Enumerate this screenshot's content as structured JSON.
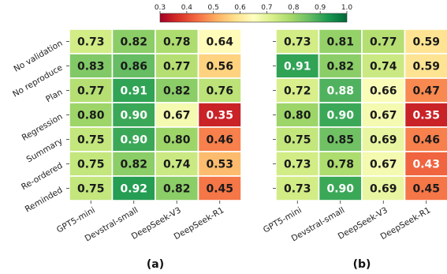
{
  "colors": {
    "scale": [
      "#a50026",
      "#d73027",
      "#f46d43",
      "#fdae61",
      "#fee08b",
      "#ffffbf",
      "#d9ef8b",
      "#a6d96a",
      "#66bd63",
      "#1a9850",
      "#006837"
    ],
    "cell_border": "#ffffff",
    "dark_text": "#1a1a1a",
    "light_text": "#ffffff"
  },
  "chart_data": [
    {
      "type": "heatmap",
      "panel_label": "(a)",
      "rows": [
        "No validation",
        "No reproduce",
        "Plan",
        "Regression",
        "Summary",
        "Re-ordered",
        "Reminded"
      ],
      "columns": [
        "GPT5-mini",
        "Devstral-small",
        "DeepSeek-V3",
        "DeepSeek-R1"
      ],
      "values": [
        [
          0.73,
          0.82,
          0.78,
          0.64
        ],
        [
          0.83,
          0.86,
          0.77,
          0.56
        ],
        [
          0.77,
          0.91,
          0.82,
          0.76
        ],
        [
          0.8,
          0.9,
          0.67,
          0.35
        ],
        [
          0.75,
          0.9,
          0.8,
          0.46
        ],
        [
          0.75,
          0.82,
          0.74,
          0.53
        ],
        [
          0.75,
          0.92,
          0.82,
          0.45
        ]
      ]
    },
    {
      "type": "heatmap",
      "panel_label": "(b)",
      "rows": [
        "No validation",
        "No reproduce",
        "Plan",
        "Regression",
        "Summary",
        "Re-ordered",
        "Reminded"
      ],
      "columns": [
        "GPT5-mini",
        "Devstral-small",
        "DeepSeek-V3",
        "DeepSeek-R1"
      ],
      "values": [
        [
          0.73,
          0.81,
          0.77,
          0.59
        ],
        [
          0.91,
          0.82,
          0.74,
          0.59
        ],
        [
          0.72,
          0.88,
          0.66,
          0.47
        ],
        [
          0.8,
          0.9,
          0.67,
          0.35
        ],
        [
          0.75,
          0.85,
          0.69,
          0.46
        ],
        [
          0.73,
          0.78,
          0.67,
          0.43
        ],
        [
          0.73,
          0.9,
          0.69,
          0.45
        ]
      ]
    }
  ],
  "colorbar": {
    "range": [
      0.3,
      1.0
    ],
    "ticks": [
      "0.3",
      "0.4",
      "0.5",
      "0.6",
      "0.7",
      "0.8",
      "0.9",
      "1.0"
    ],
    "location": "top-center"
  }
}
